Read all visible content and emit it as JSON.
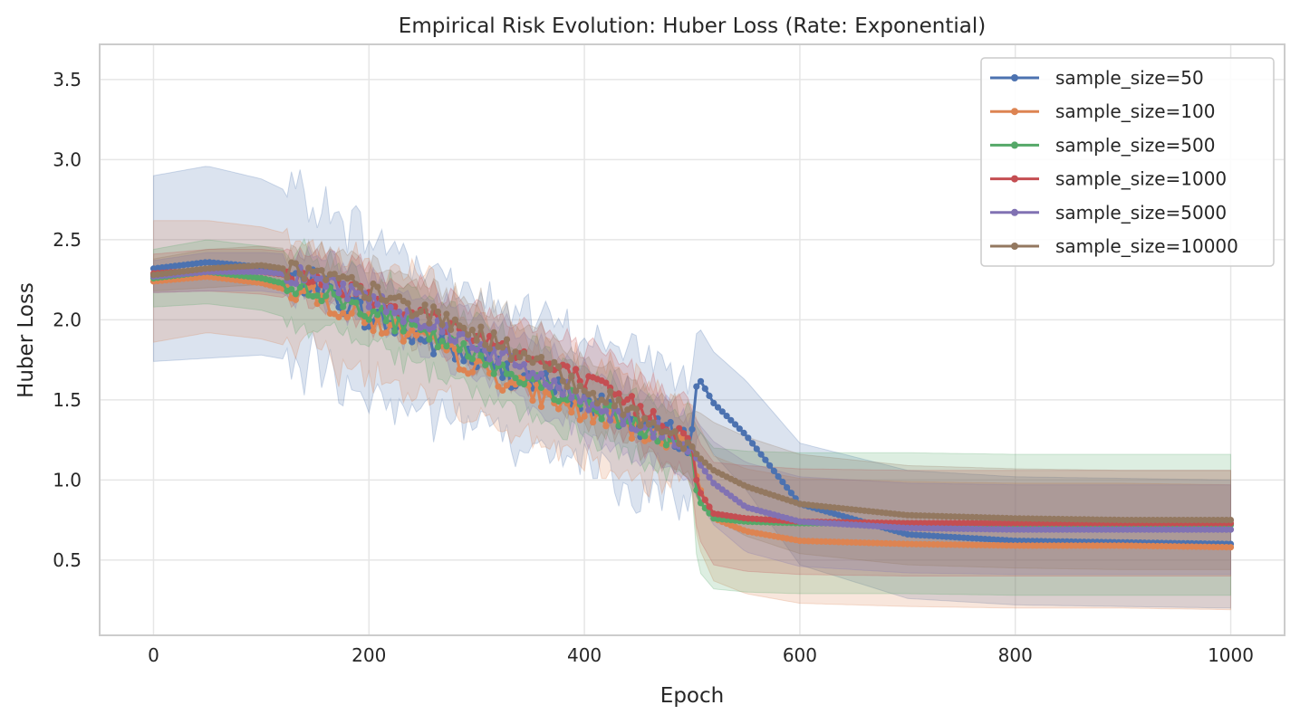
{
  "colors": {
    "s50": "#4c72b0",
    "s100": "#dd8452",
    "s500": "#55a868",
    "s1000": "#c44e52",
    "s5000": "#8172b3",
    "s10000": "#937860"
  },
  "chart_data": {
    "type": "line",
    "title": "Empirical Risk Evolution: Huber Loss (Rate: Exponential)",
    "xlabel": "Epoch",
    "ylabel": "Huber Loss",
    "xlim": [
      -50,
      1050
    ],
    "ylim": [
      0.03,
      3.72
    ],
    "xticks": [
      0,
      200,
      400,
      600,
      800,
      1000
    ],
    "xtick_labels": [
      "0",
      "200",
      "400",
      "600",
      "800",
      "1000"
    ],
    "yticks": [
      0.5,
      1.0,
      1.5,
      2.0,
      2.5,
      3.0,
      3.5
    ],
    "ytick_labels": [
      "0.5",
      "1.0",
      "1.5",
      "2.0",
      "2.5",
      "3.0",
      "3.5"
    ],
    "grid": true,
    "legend_position": "top-right",
    "x_keypoints": [
      0,
      50,
      100,
      150,
      200,
      250,
      300,
      350,
      400,
      450,
      499,
      505,
      520,
      550,
      600,
      700,
      800,
      900,
      1000
    ],
    "series": [
      {
        "name": "sample_size=50",
        "color_key": "s50",
        "values": [
          2.32,
          2.36,
          2.33,
          2.22,
          2.02,
          1.88,
          1.75,
          1.62,
          1.5,
          1.35,
          1.25,
          1.65,
          1.48,
          1.28,
          0.85,
          0.66,
          0.62,
          0.61,
          0.6
        ],
        "band_half_width": [
          0.58,
          0.6,
          0.55,
          0.5,
          0.5,
          0.48,
          0.42,
          0.4,
          0.38,
          0.45,
          0.38,
          0.32,
          0.32,
          0.34,
          0.38,
          0.4,
          0.4,
          0.4,
          0.4
        ]
      },
      {
        "name": "sample_size=100",
        "color_key": "s100",
        "values": [
          2.24,
          2.27,
          2.23,
          2.14,
          2.0,
          1.87,
          1.7,
          1.55,
          1.42,
          1.3,
          1.24,
          0.98,
          0.76,
          0.68,
          0.62,
          0.6,
          0.59,
          0.59,
          0.58
        ],
        "band_half_width": [
          0.38,
          0.35,
          0.35,
          0.35,
          0.35,
          0.36,
          0.32,
          0.3,
          0.3,
          0.3,
          0.25,
          0.38,
          0.39,
          0.39,
          0.39,
          0.39,
          0.39,
          0.39,
          0.39
        ]
      },
      {
        "name": "sample_size=500",
        "color_key": "s500",
        "values": [
          2.26,
          2.3,
          2.26,
          2.18,
          2.06,
          1.91,
          1.77,
          1.62,
          1.48,
          1.34,
          1.22,
          0.88,
          0.76,
          0.74,
          0.73,
          0.73,
          0.72,
          0.72,
          0.72
        ],
        "band_half_width": [
          0.18,
          0.2,
          0.2,
          0.22,
          0.22,
          0.22,
          0.22,
          0.22,
          0.2,
          0.2,
          0.2,
          0.44,
          0.44,
          0.44,
          0.44,
          0.44,
          0.44,
          0.44,
          0.44
        ]
      },
      {
        "name": "sample_size=1000",
        "color_key": "s1000",
        "values": [
          2.29,
          2.31,
          2.3,
          2.26,
          2.16,
          2.03,
          1.9,
          1.76,
          1.62,
          1.45,
          1.25,
          0.95,
          0.79,
          0.76,
          0.74,
          0.73,
          0.73,
          0.73,
          0.73
        ],
        "band_half_width": [
          0.12,
          0.13,
          0.14,
          0.15,
          0.18,
          0.18,
          0.2,
          0.2,
          0.2,
          0.22,
          0.22,
          0.3,
          0.32,
          0.33,
          0.33,
          0.33,
          0.33,
          0.33,
          0.33
        ]
      },
      {
        "name": "sample_size=5000",
        "color_key": "s5000",
        "values": [
          2.27,
          2.3,
          2.3,
          2.27,
          2.13,
          2.0,
          1.85,
          1.67,
          1.5,
          1.35,
          1.22,
          1.12,
          0.98,
          0.83,
          0.74,
          0.7,
          0.69,
          0.69,
          0.69
        ],
        "band_half_width": [
          0.1,
          0.12,
          0.12,
          0.13,
          0.15,
          0.16,
          0.18,
          0.2,
          0.2,
          0.2,
          0.22,
          0.24,
          0.26,
          0.28,
          0.28,
          0.28,
          0.28,
          0.28,
          0.28
        ]
      },
      {
        "name": "sample_size=10000",
        "color_key": "s10000",
        "values": [
          2.28,
          2.32,
          2.34,
          2.29,
          2.18,
          2.05,
          1.92,
          1.75,
          1.58,
          1.4,
          1.22,
          1.15,
          1.06,
          0.96,
          0.85,
          0.78,
          0.76,
          0.75,
          0.75
        ],
        "band_half_width": [
          0.1,
          0.12,
          0.12,
          0.14,
          0.16,
          0.18,
          0.2,
          0.2,
          0.2,
          0.2,
          0.2,
          0.28,
          0.3,
          0.31,
          0.31,
          0.31,
          0.31,
          0.31,
          0.31
        ]
      }
    ]
  }
}
